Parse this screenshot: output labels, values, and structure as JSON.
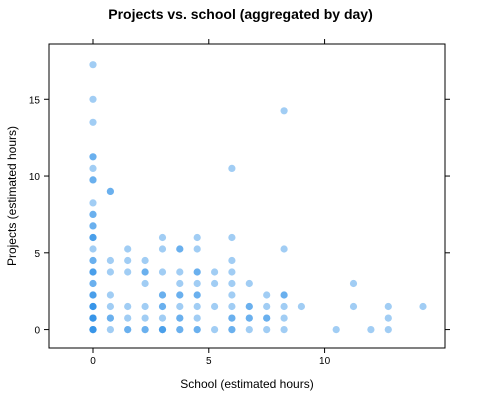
{
  "chart_data": {
    "type": "scatter",
    "title": "Projects vs. school (aggregated by day)",
    "xlabel": "School (estimated hours)",
    "ylabel": "Projects (estimated hours)",
    "xlim": [
      -1.9,
      15.2
    ],
    "ylim": [
      -1.2,
      18.6
    ],
    "xticks": [
      0,
      5,
      10
    ],
    "yticks": [
      0,
      5,
      10,
      15
    ],
    "grid": false,
    "legend": "none",
    "point_color": "#1E88E5",
    "point_opacity": 0.42,
    "points": [
      [
        0,
        17.25
      ],
      [
        0,
        15
      ],
      [
        0,
        13.5
      ],
      [
        0,
        11.25
      ],
      [
        0,
        10.5
      ],
      [
        0,
        9.75
      ],
      [
        0,
        8.25
      ],
      [
        0,
        7.5
      ],
      [
        0,
        6.75
      ],
      [
        0,
        6
      ],
      [
        0,
        5.25
      ],
      [
        0,
        4.5
      ],
      [
        0,
        3.75
      ],
      [
        0,
        3
      ],
      [
        0,
        2.25
      ],
      [
        0,
        1.5
      ],
      [
        0,
        0.75
      ],
      [
        0,
        0
      ],
      [
        0,
        11.25
      ],
      [
        0,
        9.75
      ],
      [
        0,
        7.5
      ],
      [
        0,
        6.75
      ],
      [
        0,
        6
      ],
      [
        0,
        4.5
      ],
      [
        0,
        3.75
      ],
      [
        0,
        3
      ],
      [
        0,
        2.25
      ],
      [
        0,
        1.5
      ],
      [
        0,
        0.75
      ],
      [
        0,
        0
      ],
      [
        0,
        6
      ],
      [
        0,
        3.75
      ],
      [
        0,
        2.25
      ],
      [
        0,
        1.5
      ],
      [
        0,
        0.75
      ],
      [
        0,
        0
      ],
      [
        0,
        1.5
      ],
      [
        0,
        0.75
      ],
      [
        0,
        0
      ],
      [
        0.75,
        9
      ],
      [
        0.75,
        9
      ],
      [
        0.75,
        4.5
      ],
      [
        0.75,
        3.75
      ],
      [
        0.75,
        2.25
      ],
      [
        0.75,
        1.5
      ],
      [
        0.75,
        0.75
      ],
      [
        0.75,
        0
      ],
      [
        0.75,
        0.75
      ],
      [
        1.5,
        5.25
      ],
      [
        1.5,
        4.5
      ],
      [
        1.5,
        3.75
      ],
      [
        1.5,
        1.5
      ],
      [
        1.5,
        0.75
      ],
      [
        1.5,
        0
      ],
      [
        1.5,
        0
      ],
      [
        2.25,
        4.5
      ],
      [
        2.25,
        3.75
      ],
      [
        2.25,
        3
      ],
      [
        2.25,
        1.5
      ],
      [
        2.25,
        0.75
      ],
      [
        2.25,
        0
      ],
      [
        2.25,
        0
      ],
      [
        2.25,
        3.75
      ],
      [
        3,
        6
      ],
      [
        3,
        5.25
      ],
      [
        3,
        3.75
      ],
      [
        3,
        2.25
      ],
      [
        3,
        1.5
      ],
      [
        3,
        0.75
      ],
      [
        3,
        0
      ],
      [
        3,
        2.25
      ],
      [
        3,
        1.5
      ],
      [
        3,
        0
      ],
      [
        3,
        0
      ],
      [
        3.75,
        5.25
      ],
      [
        3.75,
        3.75
      ],
      [
        3.75,
        3
      ],
      [
        3.75,
        2.25
      ],
      [
        3.75,
        1.5
      ],
      [
        3.75,
        0.75
      ],
      [
        3.75,
        0
      ],
      [
        3.75,
        5.25
      ],
      [
        3.75,
        2.25
      ],
      [
        3.75,
        0.75
      ],
      [
        3.75,
        0
      ],
      [
        4.5,
        6
      ],
      [
        4.5,
        5.25
      ],
      [
        4.5,
        3.75
      ],
      [
        4.5,
        3
      ],
      [
        4.5,
        2.25
      ],
      [
        4.5,
        1.5
      ],
      [
        4.5,
        0.75
      ],
      [
        4.5,
        0
      ],
      [
        4.5,
        3.75
      ],
      [
        4.5,
        2.25
      ],
      [
        4.5,
        0
      ],
      [
        5.25,
        3.75
      ],
      [
        5.25,
        3
      ],
      [
        5.25,
        1.5
      ],
      [
        5.25,
        0
      ],
      [
        6,
        10.5
      ],
      [
        6,
        6
      ],
      [
        6,
        4.5
      ],
      [
        6,
        3.75
      ],
      [
        6,
        3
      ],
      [
        6,
        2.25
      ],
      [
        6,
        1.5
      ],
      [
        6,
        0.75
      ],
      [
        6,
        0
      ],
      [
        6,
        0.75
      ],
      [
        6,
        0
      ],
      [
        6.75,
        3
      ],
      [
        6.75,
        1.5
      ],
      [
        6.75,
        0.75
      ],
      [
        6.75,
        0
      ],
      [
        6.75,
        1.5
      ],
      [
        6.75,
        0.75
      ],
      [
        7.5,
        2.25
      ],
      [
        7.5,
        1.5
      ],
      [
        7.5,
        0.75
      ],
      [
        7.5,
        0
      ],
      [
        7.5,
        0.75
      ],
      [
        8.25,
        14.25
      ],
      [
        8.25,
        5.25
      ],
      [
        8.25,
        2.25
      ],
      [
        8.25,
        1.5
      ],
      [
        8.25,
        0.75
      ],
      [
        8.25,
        0
      ],
      [
        8.25,
        2.25
      ],
      [
        9,
        1.5
      ],
      [
        10.5,
        0
      ],
      [
        11.25,
        3
      ],
      [
        11.25,
        1.5
      ],
      [
        12,
        0
      ],
      [
        12.75,
        1.5
      ],
      [
        12.75,
        0.75
      ],
      [
        12.75,
        0
      ],
      [
        14.25,
        1.5
      ]
    ]
  }
}
